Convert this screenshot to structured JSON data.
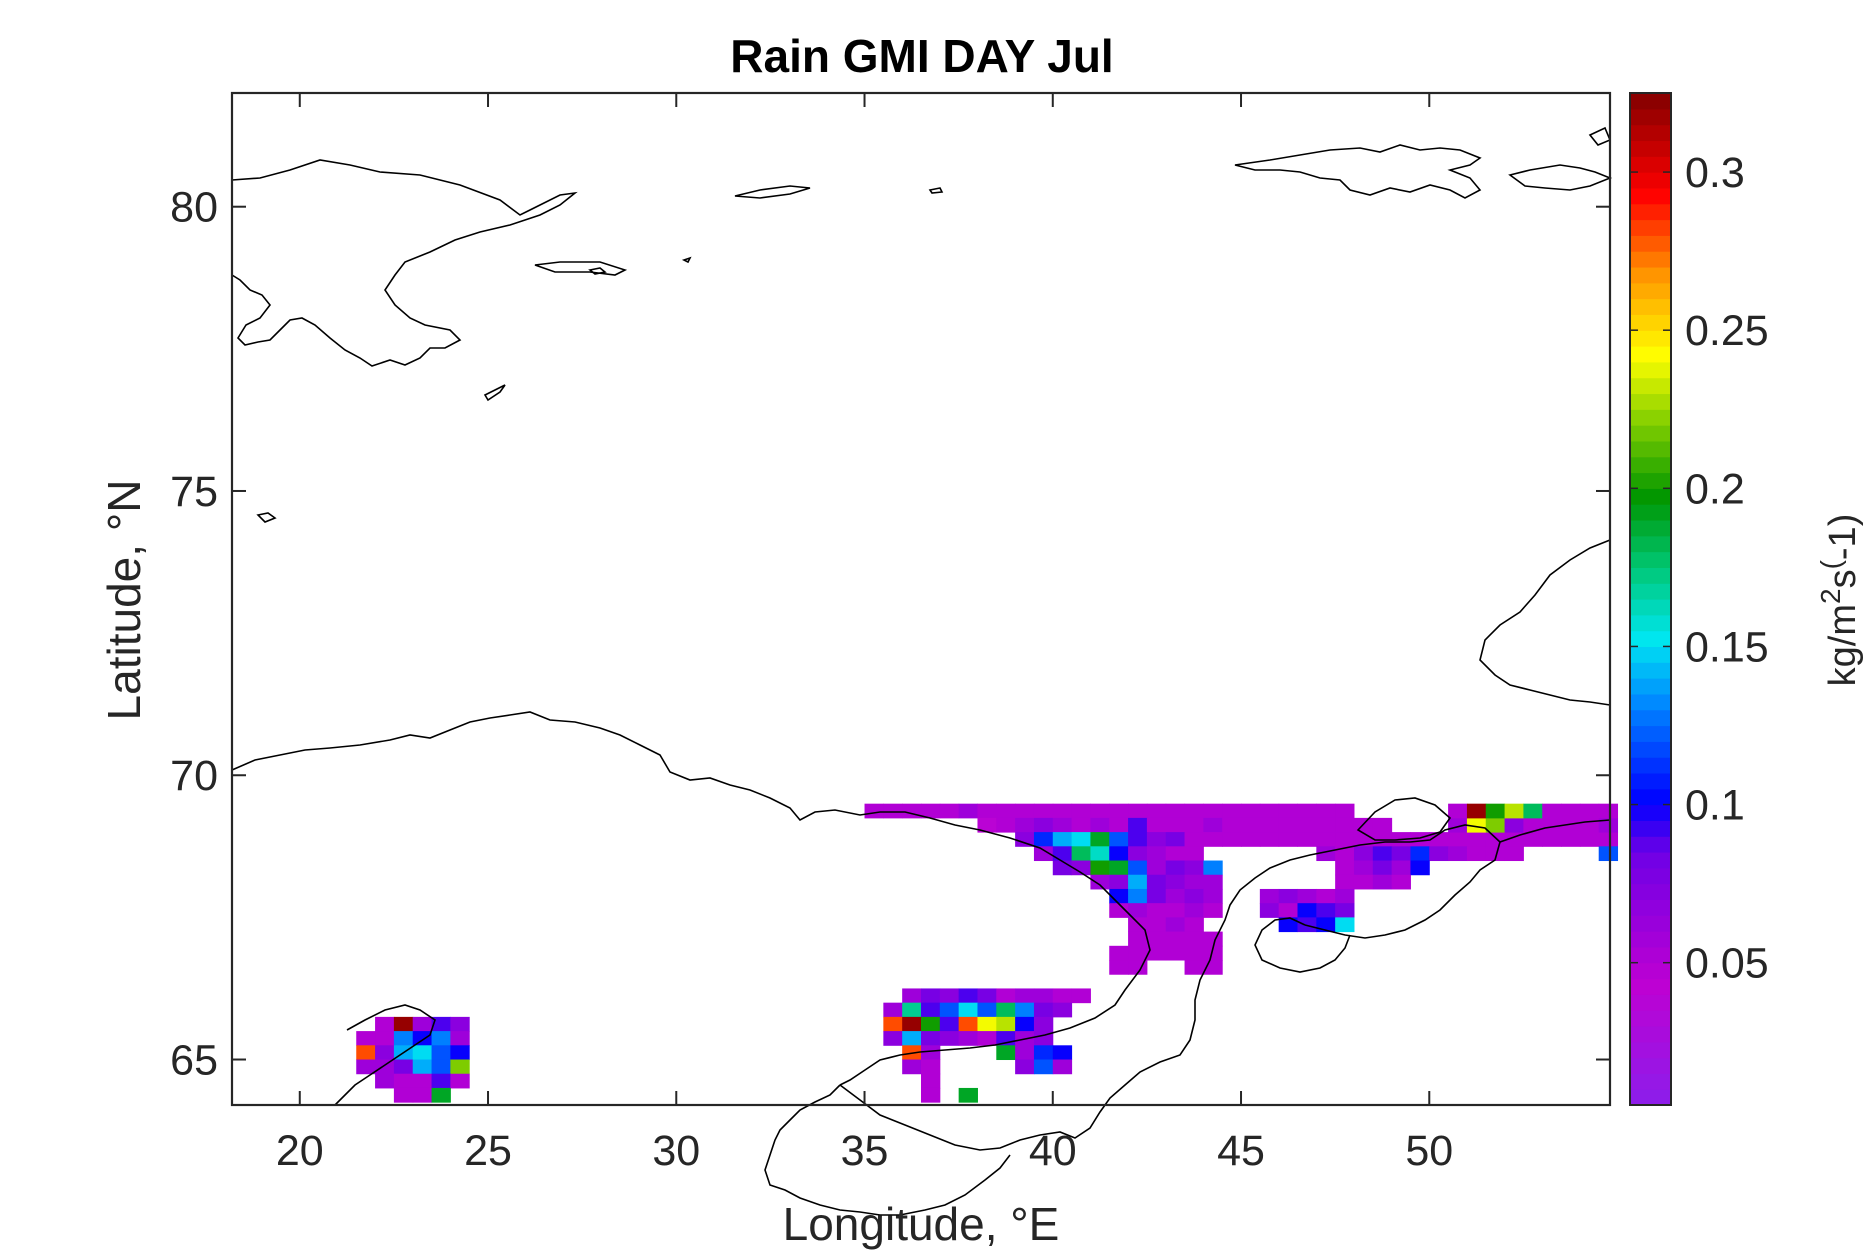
{
  "chart_data": {
    "type": "heatmap",
    "title": "Rain GMI DAY Jul",
    "xlabel": "Longitude, °E",
    "ylabel": "Latitude, °N",
    "xlim": [
      18.2,
      54.8
    ],
    "ylim": [
      64.2,
      82.0
    ],
    "xticks": [
      20,
      25,
      30,
      35,
      40,
      45,
      50
    ],
    "xtick_labels": [
      "20",
      "25",
      "30",
      "35",
      "40",
      "45",
      "50"
    ],
    "yticks": [
      65,
      70,
      75,
      80
    ],
    "ytick_labels": [
      "65",
      "70",
      "75",
      "80"
    ],
    "colorbar": {
      "label_main": "kg/m",
      "label_sup1": "2",
      "label_mid": "s",
      "label_sup2": "(",
      "label_end": "-1)",
      "ticks": [
        0.05,
        0.1,
        0.15,
        0.2,
        0.25,
        0.3
      ],
      "tick_labels": [
        "0.05",
        "0.1",
        "0.15",
        "0.2",
        "0.25",
        "0.3"
      ],
      "range": [
        0.005,
        0.325
      ],
      "colormap": "jet-like purple-to-darkred"
    },
    "cell_size": {
      "lon": 0.5,
      "lat": 0.25
    },
    "cells": [
      [
        35.0,
        69.25,
        0.05
      ],
      [
        35.5,
        69.25,
        0.05
      ],
      [
        36.0,
        69.25,
        0.05
      ],
      [
        36.5,
        69.25,
        0.05
      ],
      [
        37.0,
        69.25,
        0.05
      ],
      [
        37.5,
        69.25,
        0.06
      ],
      [
        38.0,
        69.25,
        0.05
      ],
      [
        38.5,
        69.25,
        0.05
      ],
      [
        39.0,
        69.25,
        0.05
      ],
      [
        39.5,
        69.25,
        0.05
      ],
      [
        40.0,
        69.25,
        0.05
      ],
      [
        40.5,
        69.25,
        0.05
      ],
      [
        41.0,
        69.25,
        0.05
      ],
      [
        41.5,
        69.25,
        0.05
      ],
      [
        42.0,
        69.25,
        0.05
      ],
      [
        42.5,
        69.25,
        0.05
      ],
      [
        43.0,
        69.25,
        0.05
      ],
      [
        43.5,
        69.25,
        0.05
      ],
      [
        44.0,
        69.25,
        0.05
      ],
      [
        44.5,
        69.25,
        0.05
      ],
      [
        45.0,
        69.25,
        0.05
      ],
      [
        45.5,
        69.25,
        0.05
      ],
      [
        46.0,
        69.25,
        0.05
      ],
      [
        46.5,
        69.25,
        0.05
      ],
      [
        47.0,
        69.25,
        0.05
      ],
      [
        47.5,
        69.25,
        0.05
      ],
      [
        38.0,
        69.0,
        0.04
      ],
      [
        38.5,
        69.0,
        0.05
      ],
      [
        39.0,
        69.0,
        0.06
      ],
      [
        39.5,
        69.0,
        0.07
      ],
      [
        40.0,
        69.0,
        0.06
      ],
      [
        40.5,
        69.0,
        0.05
      ],
      [
        41.0,
        69.0,
        0.06
      ],
      [
        41.5,
        69.0,
        0.05
      ],
      [
        42.0,
        69.0,
        0.09
      ],
      [
        42.5,
        69.0,
        0.05
      ],
      [
        43.0,
        69.0,
        0.05
      ],
      [
        43.5,
        69.0,
        0.05
      ],
      [
        44.0,
        69.0,
        0.06
      ],
      [
        44.5,
        69.0,
        0.05
      ],
      [
        45.0,
        69.0,
        0.05
      ],
      [
        45.5,
        69.0,
        0.05
      ],
      [
        46.0,
        69.0,
        0.05
      ],
      [
        46.5,
        69.0,
        0.05
      ],
      [
        47.0,
        69.0,
        0.05
      ],
      [
        47.5,
        69.0,
        0.05
      ],
      [
        39.0,
        68.75,
        0.07
      ],
      [
        39.5,
        68.75,
        0.11
      ],
      [
        40.0,
        68.75,
        0.14
      ],
      [
        40.5,
        68.75,
        0.15
      ],
      [
        41.0,
        68.75,
        0.19
      ],
      [
        41.5,
        68.75,
        0.12
      ],
      [
        42.0,
        68.75,
        0.09
      ],
      [
        42.5,
        68.75,
        0.07
      ],
      [
        43.0,
        68.75,
        0.08
      ],
      [
        43.5,
        68.75,
        0.05
      ],
      [
        44.0,
        68.75,
        0.05
      ],
      [
        44.5,
        68.75,
        0.05
      ],
      [
        45.0,
        68.75,
        0.05
      ],
      [
        45.5,
        68.75,
        0.05
      ],
      [
        46.0,
        68.75,
        0.05
      ],
      [
        46.5,
        68.75,
        0.05
      ],
      [
        47.0,
        68.75,
        0.05
      ],
      [
        47.5,
        68.75,
        0.05
      ],
      [
        39.5,
        68.5,
        0.06
      ],
      [
        40.0,
        68.5,
        0.09
      ],
      [
        40.5,
        68.5,
        0.18
      ],
      [
        41.0,
        68.5,
        0.16
      ],
      [
        41.5,
        68.5,
        0.1
      ],
      [
        42.0,
        68.5,
        0.07
      ],
      [
        42.5,
        68.5,
        0.06
      ],
      [
        43.0,
        68.5,
        0.05
      ],
      [
        43.5,
        68.5,
        0.05
      ],
      [
        40.0,
        68.25,
        0.08
      ],
      [
        40.5,
        68.25,
        0.07
      ],
      [
        41.0,
        68.25,
        0.2
      ],
      [
        41.5,
        68.25,
        0.19
      ],
      [
        42.0,
        68.25,
        0.12
      ],
      [
        42.5,
        68.25,
        0.06
      ],
      [
        43.0,
        68.25,
        0.08
      ],
      [
        43.5,
        68.25,
        0.07
      ],
      [
        44.0,
        68.25,
        0.13
      ],
      [
        41.0,
        68.0,
        0.06
      ],
      [
        41.5,
        68.0,
        0.07
      ],
      [
        42.0,
        68.0,
        0.14
      ],
      [
        42.5,
        68.0,
        0.08
      ],
      [
        43.0,
        68.0,
        0.07
      ],
      [
        43.5,
        68.0,
        0.06
      ],
      [
        44.0,
        68.0,
        0.06
      ],
      [
        41.5,
        67.75,
        0.1
      ],
      [
        42.0,
        67.75,
        0.13
      ],
      [
        42.5,
        67.75,
        0.08
      ],
      [
        43.0,
        67.75,
        0.06
      ],
      [
        43.5,
        67.75,
        0.07
      ],
      [
        44.0,
        67.75,
        0.06
      ],
      [
        41.5,
        67.5,
        0.05
      ],
      [
        42.0,
        67.5,
        0.06
      ],
      [
        42.5,
        67.5,
        0.05
      ],
      [
        43.0,
        67.5,
        0.05
      ],
      [
        43.5,
        67.5,
        0.06
      ],
      [
        44.0,
        67.5,
        0.05
      ],
      [
        42.0,
        67.25,
        0.05
      ],
      [
        42.5,
        67.25,
        0.05
      ],
      [
        43.0,
        67.25,
        0.06
      ],
      [
        43.5,
        67.25,
        0.05
      ],
      [
        42.0,
        67.0,
        0.05
      ],
      [
        42.5,
        67.0,
        0.05
      ],
      [
        43.0,
        67.0,
        0.05
      ],
      [
        43.5,
        67.0,
        0.05
      ],
      [
        44.0,
        67.0,
        0.05
      ],
      [
        41.5,
        66.75,
        0.05
      ],
      [
        42.0,
        66.75,
        0.05
      ],
      [
        42.5,
        66.75,
        0.05
      ],
      [
        43.0,
        66.75,
        0.05
      ],
      [
        43.5,
        66.75,
        0.05
      ],
      [
        44.0,
        66.75,
        0.05
      ],
      [
        41.5,
        66.5,
        0.05
      ],
      [
        42.0,
        66.5,
        0.05
      ],
      [
        43.5,
        66.5,
        0.05
      ],
      [
        44.0,
        66.5,
        0.05
      ],
      [
        48.0,
        68.75,
        0.05
      ],
      [
        48.5,
        68.75,
        0.05
      ],
      [
        49.0,
        68.75,
        0.05
      ],
      [
        49.5,
        68.75,
        0.05
      ],
      [
        50.0,
        68.75,
        0.05
      ],
      [
        50.5,
        68.75,
        0.05
      ],
      [
        51.0,
        68.75,
        0.05
      ],
      [
        51.5,
        68.75,
        0.05
      ],
      [
        52.0,
        68.75,
        0.05
      ],
      [
        52.5,
        68.75,
        0.05
      ],
      [
        53.0,
        68.75,
        0.05
      ],
      [
        53.5,
        68.75,
        0.05
      ],
      [
        54.0,
        68.75,
        0.05
      ],
      [
        54.5,
        68.75,
        0.05
      ],
      [
        48.0,
        69.0,
        0.05
      ],
      [
        48.5,
        69.0,
        0.05
      ],
      [
        50.5,
        69.0,
        0.06
      ],
      [
        51.0,
        69.0,
        0.24
      ],
      [
        51.5,
        69.0,
        0.22
      ],
      [
        52.0,
        69.0,
        0.07
      ],
      [
        52.5,
        69.0,
        0.05
      ],
      [
        53.0,
        69.0,
        0.05
      ],
      [
        53.5,
        69.0,
        0.05
      ],
      [
        54.0,
        69.0,
        0.05
      ],
      [
        54.5,
        69.0,
        0.06
      ],
      [
        50.5,
        69.25,
        0.05
      ],
      [
        51.0,
        69.25,
        0.32
      ],
      [
        51.5,
        69.25,
        0.2
      ],
      [
        52.0,
        69.25,
        0.23
      ],
      [
        52.5,
        69.25,
        0.18
      ],
      [
        53.0,
        69.25,
        0.05
      ],
      [
        53.5,
        69.25,
        0.05
      ],
      [
        54.0,
        69.25,
        0.05
      ],
      [
        54.5,
        69.25,
        0.05
      ],
      [
        47.0,
        68.5,
        0.06
      ],
      [
        47.5,
        68.5,
        0.05
      ],
      [
        48.0,
        68.5,
        0.07
      ],
      [
        48.5,
        68.5,
        0.09
      ],
      [
        49.0,
        68.5,
        0.08
      ],
      [
        49.5,
        68.5,
        0.11
      ],
      [
        50.0,
        68.5,
        0.07
      ],
      [
        50.5,
        68.5,
        0.06
      ],
      [
        51.0,
        68.5,
        0.05
      ],
      [
        51.5,
        68.5,
        0.05
      ],
      [
        52.0,
        68.5,
        0.05
      ],
      [
        54.5,
        68.5,
        0.12
      ],
      [
        47.5,
        68.25,
        0.05
      ],
      [
        48.0,
        68.25,
        0.06
      ],
      [
        48.5,
        68.25,
        0.08
      ],
      [
        49.0,
        68.25,
        0.06
      ],
      [
        49.5,
        68.25,
        0.1
      ],
      [
        47.5,
        68.0,
        0.05
      ],
      [
        48.0,
        68.0,
        0.05
      ],
      [
        48.5,
        68.0,
        0.06
      ],
      [
        49.0,
        68.0,
        0.05
      ],
      [
        45.5,
        67.75,
        0.06
      ],
      [
        46.0,
        67.75,
        0.07
      ],
      [
        46.5,
        67.75,
        0.06
      ],
      [
        47.0,
        67.75,
        0.05
      ],
      [
        47.5,
        67.75,
        0.06
      ],
      [
        45.5,
        67.5,
        0.07
      ],
      [
        46.0,
        67.5,
        0.05
      ],
      [
        46.5,
        67.5,
        0.1
      ],
      [
        47.0,
        67.5,
        0.09
      ],
      [
        47.5,
        67.5,
        0.08
      ],
      [
        46.0,
        67.25,
        0.1
      ],
      [
        46.5,
        67.25,
        0.09
      ],
      [
        47.0,
        67.25,
        0.1
      ],
      [
        47.5,
        67.25,
        0.15
      ],
      [
        36.0,
        66.0,
        0.06
      ],
      [
        36.5,
        66.0,
        0.08
      ],
      [
        37.0,
        66.0,
        0.07
      ],
      [
        37.5,
        66.0,
        0.09
      ],
      [
        38.0,
        66.0,
        0.08
      ],
      [
        38.5,
        66.0,
        0.05
      ],
      [
        39.0,
        66.0,
        0.06
      ],
      [
        39.5,
        66.0,
        0.06
      ],
      [
        40.0,
        66.0,
        0.05
      ],
      [
        40.5,
        66.0,
        0.05
      ],
      [
        35.5,
        65.75,
        0.06
      ],
      [
        36.0,
        65.75,
        0.17
      ],
      [
        36.5,
        65.75,
        0.09
      ],
      [
        37.0,
        65.75,
        0.12
      ],
      [
        37.5,
        65.75,
        0.15
      ],
      [
        38.0,
        65.75,
        0.12
      ],
      [
        38.5,
        65.75,
        0.18
      ],
      [
        39.0,
        65.75,
        0.13
      ],
      [
        39.5,
        65.75,
        0.08
      ],
      [
        40.0,
        65.75,
        0.07
      ],
      [
        35.5,
        65.5,
        0.28
      ],
      [
        36.0,
        65.5,
        0.32
      ],
      [
        36.5,
        65.5,
        0.2
      ],
      [
        37.0,
        65.5,
        0.09
      ],
      [
        37.5,
        65.5,
        0.28
      ],
      [
        38.0,
        65.5,
        0.24
      ],
      [
        38.5,
        65.5,
        0.23
      ],
      [
        39.0,
        65.5,
        0.1
      ],
      [
        39.5,
        65.5,
        0.07
      ],
      [
        35.5,
        65.25,
        0.07
      ],
      [
        36.0,
        65.25,
        0.14
      ],
      [
        36.5,
        65.25,
        0.08
      ],
      [
        37.0,
        65.25,
        0.07
      ],
      [
        37.5,
        65.25,
        0.06
      ],
      [
        38.0,
        65.25,
        0.05
      ],
      [
        38.5,
        65.25,
        0.09
      ],
      [
        39.0,
        65.25,
        0.06
      ],
      [
        39.5,
        65.25,
        0.07
      ],
      [
        36.0,
        65.0,
        0.28
      ],
      [
        36.5,
        65.0,
        0.06
      ],
      [
        38.5,
        65.0,
        0.19
      ],
      [
        39.0,
        65.0,
        0.06
      ],
      [
        39.5,
        65.0,
        0.11
      ],
      [
        40.0,
        65.0,
        0.1
      ],
      [
        36.0,
        64.75,
        0.06
      ],
      [
        36.5,
        64.75,
        0.05
      ],
      [
        39.0,
        64.75,
        0.07
      ],
      [
        39.5,
        64.75,
        0.12
      ],
      [
        40.0,
        64.75,
        0.06
      ],
      [
        36.5,
        64.5,
        0.05
      ],
      [
        36.5,
        64.25,
        0.05
      ],
      [
        37.5,
        64.25,
        0.19
      ],
      [
        22.0,
        65.5,
        0.05
      ],
      [
        22.5,
        65.5,
        0.32
      ],
      [
        23.0,
        65.5,
        0.06
      ],
      [
        23.5,
        65.5,
        0.09
      ],
      [
        24.0,
        65.5,
        0.07
      ],
      [
        21.5,
        65.25,
        0.05
      ],
      [
        22.0,
        65.25,
        0.05
      ],
      [
        22.5,
        65.25,
        0.13
      ],
      [
        23.0,
        65.25,
        0.1
      ],
      [
        23.5,
        65.25,
        0.13
      ],
      [
        24.0,
        65.25,
        0.06
      ],
      [
        21.5,
        65.0,
        0.28
      ],
      [
        22.0,
        65.0,
        0.07
      ],
      [
        22.5,
        65.0,
        0.14
      ],
      [
        23.0,
        65.0,
        0.15
      ],
      [
        23.5,
        65.0,
        0.12
      ],
      [
        24.0,
        65.0,
        0.1
      ],
      [
        21.5,
        64.75,
        0.06
      ],
      [
        22.0,
        64.75,
        0.06
      ],
      [
        22.5,
        64.75,
        0.08
      ],
      [
        23.0,
        64.75,
        0.14
      ],
      [
        23.5,
        64.75,
        0.12
      ],
      [
        24.0,
        64.75,
        0.22
      ],
      [
        22.0,
        64.5,
        0.06
      ],
      [
        22.5,
        64.5,
        0.05
      ],
      [
        23.0,
        64.5,
        0.05
      ],
      [
        23.5,
        64.5,
        0.09
      ],
      [
        24.0,
        64.5,
        0.05
      ],
      [
        22.5,
        64.25,
        0.05
      ],
      [
        23.0,
        64.25,
        0.05
      ],
      [
        23.5,
        64.25,
        0.19
      ]
    ],
    "grid": false
  }
}
